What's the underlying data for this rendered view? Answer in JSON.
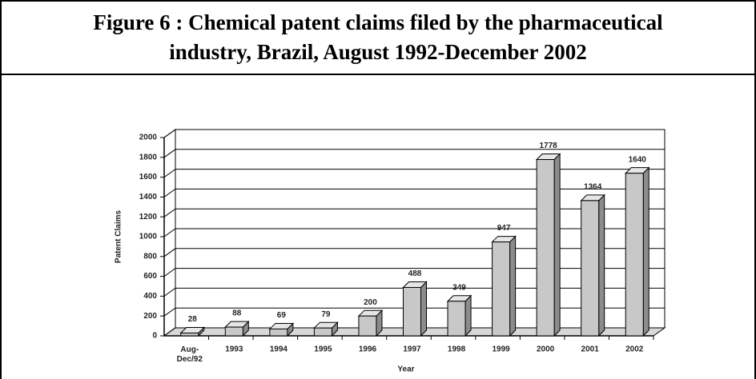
{
  "chart_data": {
    "type": "bar",
    "title": "Figure 6 : Chemical patent claims filed by the pharmaceutical industry, Brazil, August 1992-December 2002",
    "categories": [
      "Aug-\nDec/92",
      "1993",
      "1994",
      "1995",
      "1996",
      "1997",
      "1998",
      "1999",
      "2000",
      "2001",
      "2002"
    ],
    "values": [
      28,
      88,
      69,
      79,
      200,
      488,
      349,
      947,
      1778,
      1364,
      1640
    ],
    "color": "#c8c8c8",
    "ylim": [
      0,
      2000
    ],
    "yticks": [
      0,
      200,
      400,
      600,
      800,
      1000,
      1200,
      1400,
      1600,
      1800,
      2000
    ],
    "grid": true,
    "y_label": "Patent Claims",
    "x_label": "Year"
  }
}
